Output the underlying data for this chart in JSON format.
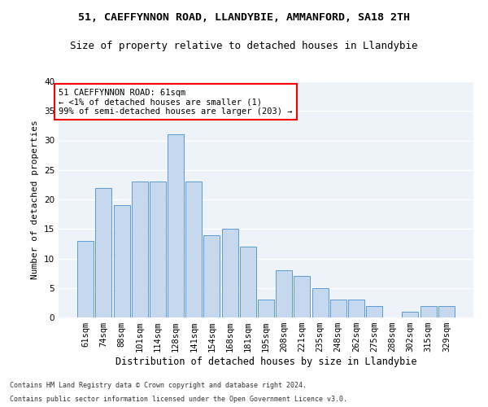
{
  "title1": "51, CAEFFYNNON ROAD, LLANDYBIE, AMMANFORD, SA18 2TH",
  "title2": "Size of property relative to detached houses in Llandybie",
  "xlabel": "Distribution of detached houses by size in Llandybie",
  "ylabel": "Number of detached properties",
  "footnote1": "Contains HM Land Registry data © Crown copyright and database right 2024.",
  "footnote2": "Contains public sector information licensed under the Open Government Licence v3.0.",
  "categories": [
    "61sqm",
    "74sqm",
    "88sqm",
    "101sqm",
    "114sqm",
    "128sqm",
    "141sqm",
    "154sqm",
    "168sqm",
    "181sqm",
    "195sqm",
    "208sqm",
    "221sqm",
    "235sqm",
    "248sqm",
    "262sqm",
    "275sqm",
    "288sqm",
    "302sqm",
    "315sqm",
    "329sqm"
  ],
  "values": [
    13,
    22,
    19,
    23,
    23,
    31,
    23,
    14,
    15,
    12,
    3,
    8,
    7,
    5,
    3,
    3,
    2,
    0,
    1,
    2,
    2
  ],
  "bar_color": "#c5d8ed",
  "bar_edge_color": "#5b9bd5",
  "annotation_line1": "51 CAEFFYNNON ROAD: 61sqm",
  "annotation_line2": "← <1% of detached houses are smaller (1)",
  "annotation_line3": "99% of semi-detached houses are larger (203) →",
  "annotation_box_color": "white",
  "annotation_box_edge_color": "red",
  "ylim": [
    0,
    40
  ],
  "yticks": [
    0,
    5,
    10,
    15,
    20,
    25,
    30,
    35,
    40
  ],
  "bg_color": "#eef3f9",
  "grid_color": "white",
  "title1_fontsize": 9.5,
  "title2_fontsize": 9,
  "xlabel_fontsize": 8.5,
  "ylabel_fontsize": 8,
  "tick_fontsize": 7.5,
  "annotation_fontsize": 7.5,
  "footnote_fontsize": 6
}
